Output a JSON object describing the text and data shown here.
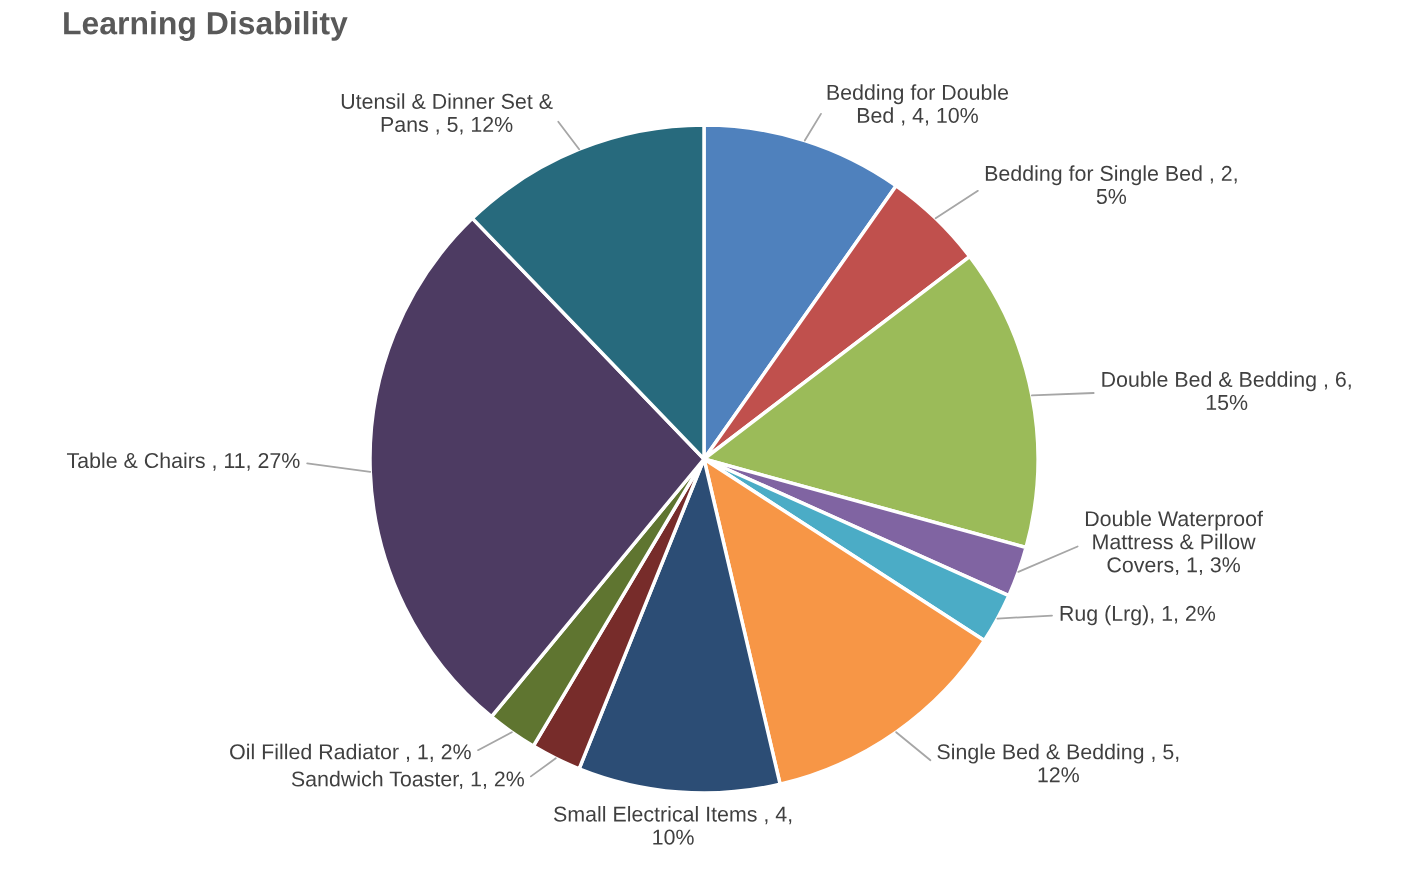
{
  "chart_data": {
    "type": "pie",
    "title": "Learning Disability",
    "categories": [
      "Bedding for Double Bed ",
      "Bedding for Single Bed ",
      "Double Bed & Bedding ",
      "Double Waterproof Mattress & Pillow Covers",
      "Rug (Lrg)",
      "Single Bed & Bedding ",
      "Small Electrical Items ",
      "Sandwich Toaster",
      "Oil Filled Radiator ",
      "Table & Chairs ",
      "Utensil & Dinner Set & Pans "
    ],
    "values": [
      4,
      2,
      6,
      1,
      1,
      5,
      4,
      1,
      1,
      11,
      5
    ],
    "value_labels": [
      "4, 10%",
      "2, 5%",
      "6, 15%",
      "1, 3%",
      "1, 2%",
      "5, 12%",
      "4, 10%",
      "1, 2%",
      "1, 2%",
      "11, 27%",
      "5, 12%"
    ],
    "colors": [
      "#4f81bd",
      "#c0504d",
      "#9bbb59",
      "#8064a2",
      "#4bacc6",
      "#f79646",
      "#2c4d75",
      "#772c2a",
      "#5f7530",
      "#4d3b62",
      "#276a7d"
    ]
  }
}
